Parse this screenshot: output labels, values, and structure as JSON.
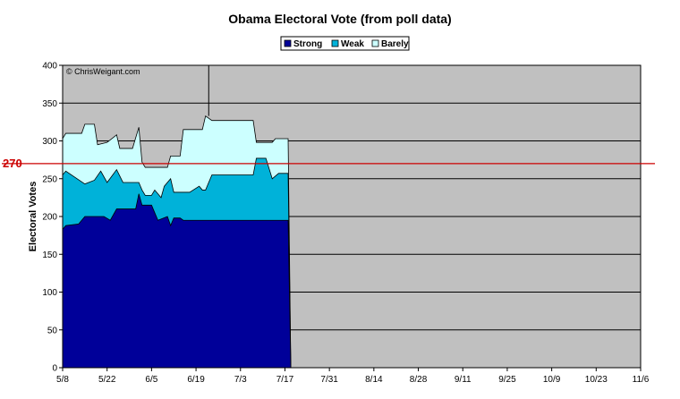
{
  "chart_data": {
    "type": "area",
    "title": "Obama Electoral Vote (from poll data)",
    "xlabel": "",
    "ylabel": "Electoral Votes",
    "ylim": [
      0,
      400
    ],
    "yticks": [
      0,
      50,
      100,
      150,
      200,
      250,
      300,
      350,
      400
    ],
    "x_tick_labels": [
      "5/8",
      "5/22",
      "6/5",
      "6/19",
      "7/3",
      "7/17",
      "7/31",
      "8/14",
      "8/28",
      "9/11",
      "9/25",
      "10/9",
      "10/23",
      "11/6"
    ],
    "x_range": [
      "5/8",
      "11/6"
    ],
    "grid": true,
    "legend_position": "top-center",
    "copyright": "© ChrisWeigant.com",
    "threshold": {
      "value": 270,
      "label": "270",
      "color": "#cc0000"
    },
    "stacked": true,
    "series": [
      {
        "name": "Strong",
        "color": "#000099",
        "points": [
          [
            "5/8",
            183
          ],
          [
            "5/9",
            188
          ],
          [
            "5/13",
            190
          ],
          [
            "5/15",
            200
          ],
          [
            "5/21",
            200
          ],
          [
            "5/23",
            195
          ],
          [
            "5/25",
            210
          ],
          [
            "5/31",
            210
          ],
          [
            "6/1",
            230
          ],
          [
            "6/2",
            215
          ],
          [
            "6/5",
            215
          ],
          [
            "6/7",
            195
          ],
          [
            "6/10",
            200
          ],
          [
            "6/11",
            188
          ],
          [
            "6/12",
            198
          ],
          [
            "6/14",
            198
          ],
          [
            "6/15",
            195
          ],
          [
            "7/18",
            195
          ]
        ]
      },
      {
        "name": "Weak",
        "color": "#00b2d9",
        "points": [
          [
            "5/8",
            255
          ],
          [
            "5/9",
            260
          ],
          [
            "5/15",
            243
          ],
          [
            "5/18",
            248
          ],
          [
            "5/20",
            260
          ],
          [
            "5/22",
            245
          ],
          [
            "5/25",
            262
          ],
          [
            "5/27",
            245
          ],
          [
            "6/1",
            245
          ],
          [
            "6/2",
            235
          ],
          [
            "6/3",
            228
          ],
          [
            "6/5",
            228
          ],
          [
            "6/6",
            235
          ],
          [
            "6/8",
            225
          ],
          [
            "6/9",
            240
          ],
          [
            "6/11",
            250
          ],
          [
            "6/12",
            232
          ],
          [
            "6/17",
            232
          ],
          [
            "6/20",
            240
          ],
          [
            "6/21",
            235
          ],
          [
            "6/22",
            235
          ],
          [
            "6/24",
            255
          ],
          [
            "7/7",
            255
          ],
          [
            "7/8",
            277
          ],
          [
            "7/11",
            277
          ],
          [
            "7/13",
            250
          ],
          [
            "7/15",
            257
          ],
          [
            "7/18",
            257
          ]
        ]
      },
      {
        "name": "Barely",
        "color": "#ccffff",
        "points": [
          [
            "5/8",
            303
          ],
          [
            "5/9",
            310
          ],
          [
            "5/14",
            310
          ],
          [
            "5/15",
            322
          ],
          [
            "5/18",
            322
          ],
          [
            "5/19",
            295
          ],
          [
            "5/22",
            298
          ],
          [
            "5/25",
            308
          ],
          [
            "5/26",
            290
          ],
          [
            "5/30",
            290
          ],
          [
            "6/1",
            318
          ],
          [
            "6/2",
            272
          ],
          [
            "6/3",
            265
          ],
          [
            "6/10",
            265
          ],
          [
            "6/11",
            280
          ],
          [
            "6/14",
            280
          ],
          [
            "6/15",
            315
          ],
          [
            "6/21",
            315
          ],
          [
            "6/22",
            333
          ],
          [
            "6/24",
            327
          ],
          [
            "7/7",
            327
          ],
          [
            "7/8",
            298
          ],
          [
            "7/13",
            298
          ],
          [
            "7/14",
            303
          ],
          [
            "7/18",
            303
          ]
        ]
      }
    ],
    "annotation_line": {
      "x": "6/23",
      "y_from": 333,
      "y_to": 400
    }
  }
}
